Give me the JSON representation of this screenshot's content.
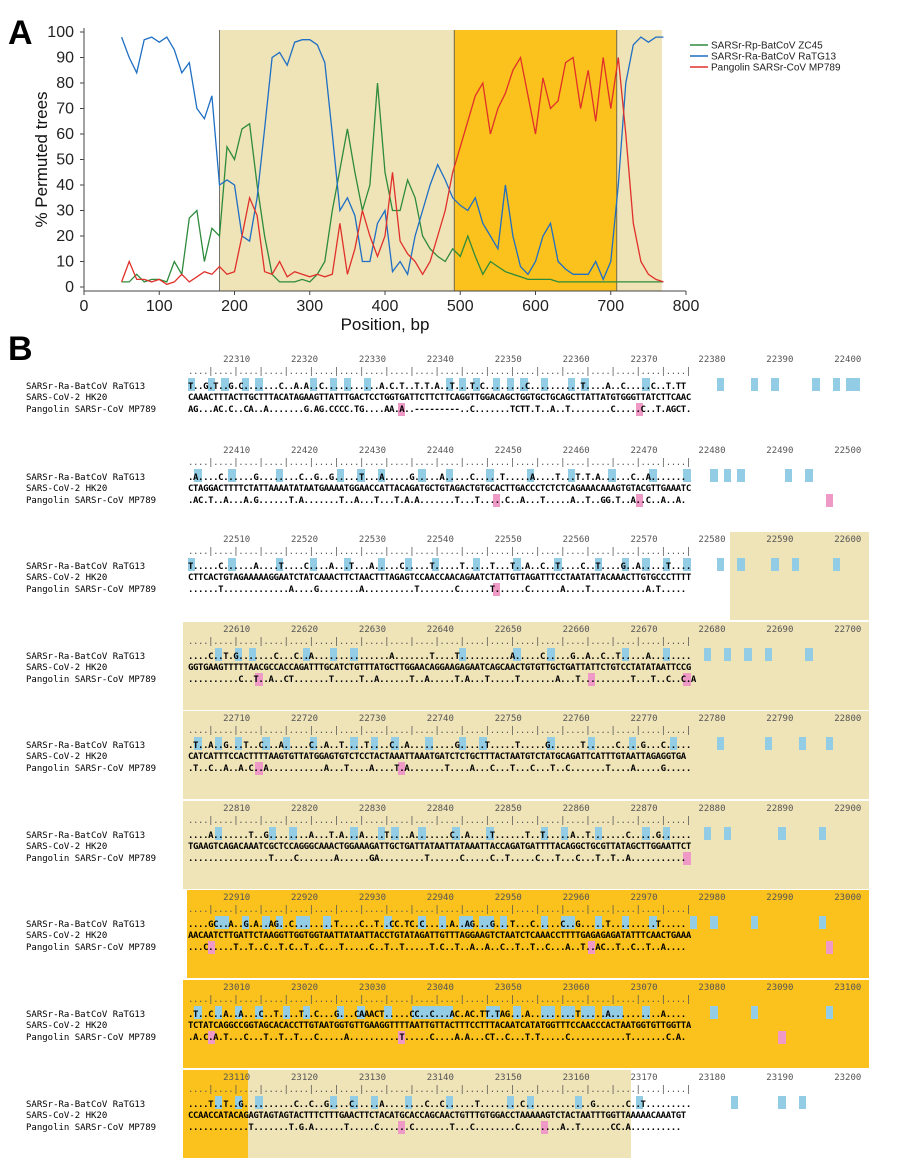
{
  "panel_a_label": "A",
  "panel_b_label": "B",
  "chart_data": {
    "type": "line",
    "xlabel": "Position, bp",
    "ylabel": "% Permuted trees",
    "xlim": [
      0,
      800
    ],
    "ylim": [
      0,
      100
    ],
    "xticks": [
      0,
      100,
      200,
      300,
      400,
      500,
      600,
      700,
      800
    ],
    "yticks": [
      0,
      10,
      20,
      30,
      40,
      50,
      60,
      70,
      80,
      90,
      100
    ],
    "legend_position": "top-right",
    "shaded_regions": [
      {
        "from": 180,
        "to": 492,
        "color": "#efe3b8"
      },
      {
        "from": 492,
        "to": 708,
        "color": "#fbc21d"
      },
      {
        "from": 708,
        "to": 768,
        "color": "#efe3b8"
      }
    ],
    "series": [
      {
        "name": "SARSr-Rp-BatCoV ZC45",
        "color": "#2e8b3c",
        "x": [
          50,
          60,
          70,
          80,
          90,
          100,
          110,
          120,
          130,
          140,
          150,
          160,
          170,
          180,
          190,
          200,
          210,
          220,
          230,
          240,
          250,
          260,
          270,
          280,
          290,
          300,
          310,
          320,
          330,
          340,
          350,
          360,
          370,
          380,
          390,
          400,
          410,
          420,
          430,
          440,
          450,
          460,
          470,
          480,
          490,
          500,
          510,
          520,
          530,
          540,
          550,
          560,
          570,
          580,
          590,
          600,
          610,
          620,
          630,
          640,
          650,
          660,
          670,
          680,
          690,
          700,
          710,
          720,
          730,
          740,
          750,
          760,
          770
        ],
        "y": [
          2,
          2,
          5,
          2,
          3,
          3,
          2,
          10,
          5,
          27,
          30,
          10,
          23,
          20,
          55,
          50,
          62,
          64,
          40,
          20,
          5,
          2,
          2,
          2,
          3,
          2,
          5,
          10,
          30,
          46,
          62,
          45,
          30,
          40,
          80,
          45,
          30,
          30,
          42,
          35,
          20,
          15,
          12,
          10,
          15,
          12,
          20,
          12,
          5,
          10,
          8,
          6,
          5,
          4,
          3,
          3,
          3,
          3,
          2,
          2,
          2,
          2,
          2,
          2,
          2,
          2,
          2,
          2,
          2,
          2,
          2,
          2,
          2
        ]
      },
      {
        "name": "SARSr-Ra-BatCoV RaTG13",
        "color": "#1f6fc4",
        "x": [
          50,
          60,
          70,
          80,
          90,
          100,
          110,
          120,
          130,
          140,
          150,
          160,
          170,
          180,
          190,
          200,
          210,
          220,
          230,
          240,
          250,
          260,
          270,
          280,
          290,
          300,
          310,
          320,
          330,
          340,
          350,
          360,
          370,
          380,
          390,
          400,
          410,
          420,
          430,
          440,
          450,
          460,
          470,
          480,
          490,
          500,
          510,
          520,
          530,
          540,
          550,
          560,
          570,
          580,
          590,
          600,
          610,
          620,
          630,
          640,
          650,
          660,
          670,
          680,
          690,
          700,
          710,
          720,
          730,
          740,
          750,
          760,
          770
        ],
        "y": [
          98,
          90,
          84,
          97,
          98,
          96,
          98,
          93,
          84,
          88,
          70,
          66,
          75,
          40,
          42,
          40,
          20,
          18,
          35,
          62,
          90,
          92,
          87,
          96,
          97,
          97,
          95,
          88,
          60,
          30,
          35,
          28,
          10,
          10,
          25,
          30,
          6,
          10,
          5,
          20,
          30,
          40,
          48,
          42,
          35,
          32,
          30,
          35,
          25,
          20,
          15,
          40,
          20,
          8,
          5,
          10,
          20,
          25,
          10,
          7,
          5,
          5,
          5,
          10,
          3,
          10,
          40,
          80,
          95,
          98,
          96,
          98,
          98
        ]
      },
      {
        "name": "Pangolin SARSr-CoV MP789",
        "color": "#e0302a",
        "x": [
          50,
          60,
          70,
          80,
          90,
          100,
          110,
          120,
          130,
          140,
          150,
          160,
          170,
          180,
          190,
          200,
          210,
          220,
          230,
          240,
          250,
          260,
          270,
          280,
          290,
          300,
          310,
          320,
          330,
          340,
          350,
          360,
          370,
          380,
          390,
          400,
          410,
          420,
          430,
          440,
          450,
          460,
          470,
          480,
          490,
          500,
          510,
          520,
          530,
          540,
          550,
          560,
          570,
          580,
          590,
          600,
          610,
          620,
          630,
          640,
          650,
          660,
          670,
          680,
          690,
          700,
          710,
          720,
          730,
          740,
          750,
          760,
          770
        ],
        "y": [
          2,
          10,
          3,
          3,
          2,
          3,
          1,
          2,
          5,
          2,
          4,
          6,
          5,
          8,
          5,
          6,
          20,
          35,
          28,
          6,
          5,
          10,
          4,
          6,
          5,
          4,
          5,
          4,
          5,
          25,
          5,
          15,
          30,
          20,
          12,
          20,
          45,
          18,
          13,
          10,
          5,
          10,
          20,
          30,
          45,
          55,
          65,
          75,
          80,
          60,
          70,
          76,
          85,
          90,
          75,
          60,
          82,
          70,
          73,
          88,
          90,
          70,
          85,
          65,
          90,
          70,
          90,
          60,
          25,
          10,
          5,
          3,
          2
        ]
      }
    ]
  },
  "alignment": {
    "row_names": [
      "SARSr-Ra-BatCoV RaTG13",
      "SARS-CoV-2 HK20",
      "Pangolin SARSr-CoV MP789"
    ],
    "blocks": [
      {
        "start": 22301,
        "numbers": [
          "22310",
          "22320",
          "22330",
          "22340",
          "22350",
          "22360",
          "22370",
          "22380",
          "22390",
          "22400"
        ],
        "ruler": "....|....|....|....|....|....|....|....|....|....|....|....|....|....|....|....|....|....|....|....|",
        "ratg13": "T..G.T..G.C.......C..A.A..C...........A.C.T..T.T.A..T...T.C........C..........T....A..C.....C..T.TT",
        "hk20": "CAAACTTTACTTGCTTTACATAGAAGTTATTTGACTCCTGGTGATTCTTCTTCAGGTTGGACAGCTGGTGCTGCAGCTTATTATGTGGGTTATCTTCAAC",
        "mp789": "AG...AC.C..CA..A.......G.AG.CCCC.TG....AA.A..---------..C.......TCTT.T..A..T........C.....C..T.AGCT."
      },
      {
        "start": 22401,
        "numbers": [
          "22410",
          "22420",
          "22430",
          "22440",
          "22450",
          "22460",
          "22470",
          "22480",
          "22490",
          "22500"
        ],
        "ruler": "....|....|....|....|....|....|....|....|....|....|....|....|....|....|....|....|....|....|....|....|",
        "ratg13": ".A....C......G........C..G..G.....T...A.....G.....A.....C.....T.....A....T...T.T.A......C..A.......",
        "hk20": "CTAGGACTTTTCTATTAAAATATAATGAAAATGGAACCATTACAGATGCTGTAGACTGTGCACTTGACCCTCTCTCAGAAACAAAGTGTACGTTGAAATC",
        "mp789": ".AC.T..A...A.G......T.A.......T..A...T...T.A.A.......T...T.....C..A...T.....A..T..GG.T..A..C..A..A."
      },
      {
        "start": 22501,
        "numbers": [
          "22510",
          "22520",
          "22530",
          "22540",
          "22550",
          "22560",
          "22570",
          "22580",
          "22590",
          "22600"
        ],
        "ruler": "....|....|....|....|....|....|....|....|....|....|....|....|....|....|....|....|....|....|....|....|",
        "ratg13": "T.....C......A....T....C....A...T...A.....C.....T.....T.....T...T..A..C..T....C..T....G..A.....T....",
        "hk20": "CTTCACTGTAGAAAAAGGAATCTATCAAACTTCTAACTTTAGAGTCCAACCAACAGAATCTATTGTTAGATTTCCTAATATTACAAACTTGTGCCCTTTT",
        "mp789": "......T.............A....G........A..........T.......C......T......C......A....T...........A.T....."
      },
      {
        "start": 22601,
        "numbers": [
          "22610",
          "22620",
          "22630",
          "22640",
          "22650",
          "22660",
          "22670",
          "22680",
          "22690",
          "22700"
        ],
        "ruler": "....|....|....|....|....|....|....|....|....|....|....|....|....|....|....|....|....|....|....|....|",
        "ratg13": "....C..T.G.......C...C..A...............A.......T....T..........A.....C.....G..A..C..T.....A........",
        "hk20": "GGTGAAGTTTTTAACGCCACCAGATTTGCATCTGTTTATGCTTGGAACAGGAAGAGAATCAGCAACTGTGTTGCTGATTATTCTGTCCTATATAATTCCG",
        "mp789": "..........C..T..A..CT.......T.....T..A......T..A.....T.A...T.....T.......A...T..........T...T..C..C.A"
      },
      {
        "start": 22701,
        "numbers": [
          "22710",
          "22720",
          "22730",
          "22740",
          "22750",
          "22760",
          "22770",
          "22780",
          "22790",
          "22800"
        ],
        "ruler": "....|....|....|....|....|....|....|....|....|....|....|....|....|....|....|....|....|....|....|....|",
        "ratg13": ".T..A..G...T..C...A.....C..A..T....T....C..A.........G.....T.....T.....G......T......C....G...C.....",
        "hk20": "CATCATTTCCACTTTTAAGTGTTATGGAGTGTCTCCTACTAAATTAAATGATCTCTGCTTTACTAATGTCTATGCAGATTCATTTGTAATTAGAGGTGA",
        "mp789": ".T..C..A..A.C..A...........A...T....A....T.A.......T....A...C...T...C...T..C.......T....A.....G....."
      },
      {
        "start": 22801,
        "numbers": [
          "22810",
          "22820",
          "22830",
          "22840",
          "22850",
          "22860",
          "22870",
          "22880",
          "22890",
          "22900"
        ],
        "ruler": "....|....|....|....|....|....|....|....|....|....|....|....|....|....|....|....|....|....|....|....|",
        "ratg13": "....A.......T..G........A...T.A...A....T....A.......C..A....T......T..T.....A..T.......C.....G......",
        "hk20": "TGAAGTCAGACAAATCGCTCCAGGGCAAACTGGAAAGATTGCTGATTATAATTATAAATTACCAGATGATTTTACAGGCTGCGTTATAGCTTGGAATTCT",
        "mp789": "................T....C.......A......GA.........T......C.....C..T.....C...T...C...T..T..A..........."
      },
      {
        "start": 22901,
        "numbers": [
          "22910",
          "22920",
          "22930",
          "22940",
          "22950",
          "22960",
          "22970",
          "22980",
          "22990",
          "23000"
        ],
        "ruler": "....|....|....|....|....|....|....|....|....|....|....|....|....|....|....|....|....|....|....|....|",
        "ratg13": "....GC..A..G.A..AG..C........T....C..T..CC.TC.C.....A..AG...G...T...C.....C..G.....T.........T.....",
        "hk20": "AACAATCTTGATTCTAAGGTTGGTGGTAATTATAATTACCTGTATAGATTGTTTAGGAAGTCTAATCTCAAACCTTTTGAGAGAGATATTTCAACTGAAA",
        "mp789": "...C.....T..T..C..T.C..T..C...T.....C..T..T.....T.C..T..A..A..C..T..T..C...A..T..AC..T..C..T..A...."
      },
      {
        "start": 23001,
        "numbers": [
          "23010",
          "23020",
          "23030",
          "23040",
          "23050",
          "23060",
          "23070",
          "23080",
          "23090",
          "23100"
        ],
        "ruler": "....|....|....|....|....|....|....|....|....|....|....|....|....|....|....|....|....|....|....|....|",
        "ratg13": ".T..C..A..A...C..T....T..C...G...CAAACT.....CC..C...AC.AC.TT.TAG...A.........T.....A..........A....",
        "hk20": "TCTATCAGGCCGGTAGCACACCTTGTAATGGTGTTGAAGGTTTTAATTGTTACTTTCCTTTACAATCATATGGTTTCCAACCCACTAATGGTGTTGGTTA",
        "mp789": ".A.C.A.T...C...T..T..T...C.....A..........T.....C....A.A...CT..C...T.T.....C...........T.......C.A."
      },
      {
        "start": 23101,
        "numbers": [
          "23110",
          "23120",
          "23130",
          "23140",
          "23150",
          "23160",
          "23170",
          "23180",
          "23190",
          "23200"
        ],
        "ruler": "....|....|....|....|....|....|....|....|....|....|....|....|....|....|....|....|....|....|....|....|",
        "ratg13": "....T..T..G..........C..C..G....C.....A........C..C......T........C.............G......C..T.........",
        "hk20": "CCAACCATACAGAGTAGTAGTACTTTCTTTGAACTTCTACATGCACCAGCAACTGTTTGTGGACCTAAAAAGTCTACTAATTTGGTTAAAAACAAATGT",
        "mp789": "............T.......T.G.A......T.....C......C.......T...C........C........A..T......CC.A.........."
      }
    ]
  }
}
